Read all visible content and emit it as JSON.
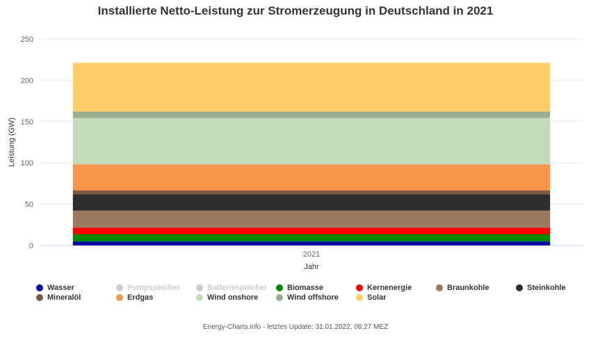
{
  "chart_data": {
    "type": "bar",
    "stacked": true,
    "title": "Installierte Netto-Leistung zur Stromerzeugung in Deutschland in 2021",
    "xlabel": "Jahr",
    "ylabel": "Leistung (GW)",
    "categories": [
      "2021"
    ],
    "ylim": [
      0,
      250
    ],
    "yticks": [
      0,
      50,
      100,
      150,
      200,
      250
    ],
    "grid": true,
    "legend_position": "bottom",
    "series": [
      {
        "name": "Wasser",
        "color": "#0000a0",
        "values": [
          4.9
        ],
        "visible": true
      },
      {
        "name": "Pumpspeicher",
        "color": "#d3d3d3",
        "values": [
          0
        ],
        "visible": false
      },
      {
        "name": "Batteriespeicher",
        "color": "#d3d3d3",
        "values": [
          0
        ],
        "visible": false
      },
      {
        "name": "Biomasse",
        "color": "#008a00",
        "values": [
          8.6
        ],
        "visible": true
      },
      {
        "name": "Kernenergie",
        "color": "#ff0000",
        "values": [
          8.1
        ],
        "visible": true
      },
      {
        "name": "Braunkohle",
        "color": "#987a63",
        "values": [
          20.6
        ],
        "visible": true
      },
      {
        "name": "Steinkohle",
        "color": "#2e2e2e",
        "values": [
          19.9
        ],
        "visible": true
      },
      {
        "name": "Mineralöl",
        "color": "#7a5a45",
        "values": [
          4.4
        ],
        "visible": true
      },
      {
        "name": "Erdgas",
        "color": "#f9954d",
        "values": [
          31.7
        ],
        "visible": true
      },
      {
        "name": "Wind onshore",
        "color": "#c3dbbb",
        "values": [
          56.1
        ],
        "visible": true
      },
      {
        "name": "Wind offshore",
        "color": "#99ae91",
        "values": [
          7.8
        ],
        "visible": true
      },
      {
        "name": "Solar",
        "color": "#ffcc66",
        "values": [
          58.9
        ],
        "visible": true
      }
    ]
  },
  "footer": "Energy-Charts.info - letztes Update: 31.01.2022, 08:27 MEZ"
}
